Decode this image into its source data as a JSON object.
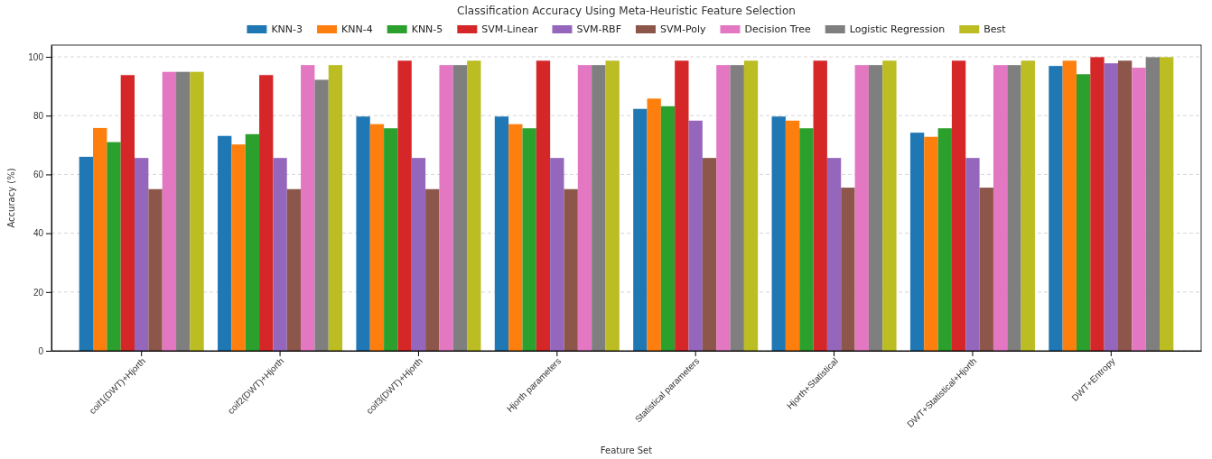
{
  "chart_data": {
    "type": "bar",
    "title": "Classification Accuracy Using Meta-Heuristic Feature Selection",
    "xlabel": "Feature Set",
    "ylabel": "Accuracy (%)",
    "categories": [
      "coif1(DWT)+Hjorth",
      "coif2(DWT)+Hjorth",
      "coif3(DWT)+Hjorth",
      "Hjorth parameters",
      "Statistical parameters",
      "Hjorth+Statistical",
      "DWT+Statistical+Hjorth",
      "DWT+Entropy"
    ],
    "series": [
      {
        "name": "KNN-3",
        "color": "#1f77b4",
        "values": [
          66,
          73.1,
          79.7,
          79.7,
          82.3,
          79.7,
          74.2,
          96.9
        ]
      },
      {
        "name": "KNN-4",
        "color": "#ff7f0e",
        "values": [
          75.8,
          70.2,
          77.1,
          77.1,
          85.8,
          78.3,
          72.8,
          98.7
        ]
      },
      {
        "name": "KNN-5",
        "color": "#2ca02c",
        "values": [
          71,
          73.7,
          75.7,
          75.7,
          83.2,
          75.7,
          75.7,
          94.1
        ]
      },
      {
        "name": "SVM-Linear",
        "color": "#d62728",
        "values": [
          93.8,
          93.8,
          98.7,
          98.7,
          98.7,
          98.7,
          98.7,
          99.9
        ]
      },
      {
        "name": "SVM-RBF",
        "color": "#9467bd",
        "values": [
          65.6,
          65.6,
          65.6,
          65.6,
          78.3,
          65.6,
          65.6,
          97.8
        ]
      },
      {
        "name": "SVM-Poly",
        "color": "#8c564b",
        "values": [
          55,
          55,
          55,
          55,
          65.6,
          55.5,
          55.5,
          98.7
        ]
      },
      {
        "name": "Decision Tree",
        "color": "#e377c2",
        "values": [
          94.9,
          97.2,
          97.2,
          97.2,
          97.2,
          97.2,
          97.2,
          96.3
        ]
      },
      {
        "name": "Logistic Regression",
        "color": "#7f7f7f",
        "values": [
          94.9,
          92.2,
          97.2,
          97.2,
          97.2,
          97.2,
          97.2,
          99.9
        ]
      },
      {
        "name": "Best",
        "color": "#bcbd22",
        "values": [
          94.9,
          97.2,
          98.7,
          98.7,
          98.7,
          98.7,
          98.7,
          99.9
        ]
      }
    ],
    "ylim": [
      0,
      104
    ],
    "yticks": [
      0,
      20,
      40,
      60,
      80,
      100
    ],
    "grid": "y",
    "legend": "top"
  }
}
